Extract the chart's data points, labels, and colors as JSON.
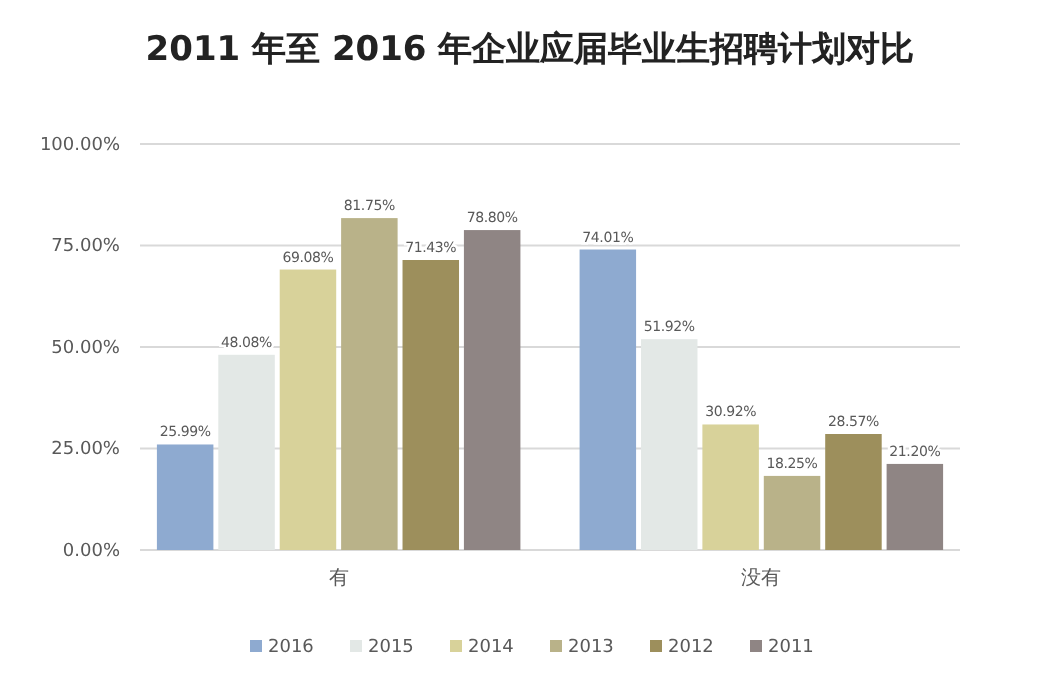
{
  "chart_data": {
    "type": "bar",
    "title": "2011 年至 2016 年企业应届毕业生招聘计划对比",
    "categories": [
      "有",
      "没有"
    ],
    "series": [
      {
        "name": "2016",
        "color": "#8eaad0",
        "values": [
          25.99,
          74.01
        ],
        "value_labels": [
          "25.99%",
          "74.01%"
        ]
      },
      {
        "name": "2015",
        "color": "#e3e8e6",
        "values": [
          48.08,
          51.92
        ],
        "value_labels": [
          "48.08%",
          "51.92%"
        ]
      },
      {
        "name": "2014",
        "color": "#d8d29a",
        "values": [
          69.08,
          30.92
        ],
        "value_labels": [
          "69.08%",
          "30.92%"
        ]
      },
      {
        "name": "2013",
        "color": "#b9b289",
        "values": [
          81.75,
          18.25
        ],
        "value_labels": [
          "81.75%",
          "18.25%"
        ]
      },
      {
        "name": "2012",
        "color": "#9d8f5c",
        "values": [
          71.43,
          28.57
        ],
        "value_labels": [
          "71.43%",
          "28.57%"
        ]
      },
      {
        "name": "2011",
        "color": "#8f8584",
        "values": [
          78.8,
          21.2
        ],
        "value_labels": [
          "78.80%",
          "21.20%"
        ]
      }
    ],
    "ylim": [
      0,
      100
    ],
    "yticks": [
      {
        "value": 0,
        "label": "0.00%"
      },
      {
        "value": 25,
        "label": "25.00%"
      },
      {
        "value": 50,
        "label": "50.00%"
      },
      {
        "value": 75,
        "label": "75.00%"
      },
      {
        "value": 100,
        "label": "100.00%"
      }
    ],
    "grid": "y",
    "legend": "bottom"
  }
}
